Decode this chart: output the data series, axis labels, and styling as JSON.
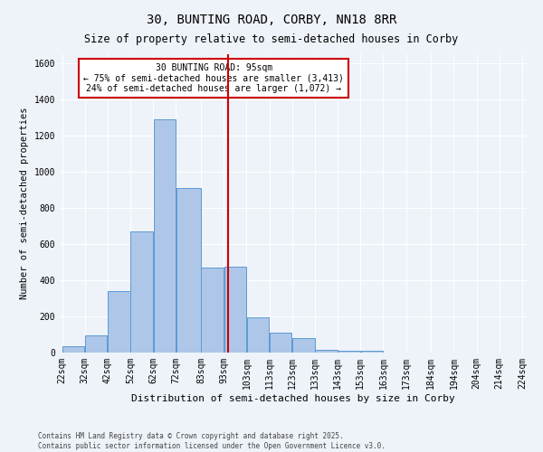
{
  "title": "30, BUNTING ROAD, CORBY, NN18 8RR",
  "subtitle": "Size of property relative to semi-detached houses in Corby",
  "xlabel": "Distribution of semi-detached houses by size in Corby",
  "ylabel": "Number of semi-detached properties",
  "footer_line1": "Contains HM Land Registry data © Crown copyright and database right 2025.",
  "footer_line2": "Contains public sector information licensed under the Open Government Licence v3.0.",
  "annotation_title": "30 BUNTING ROAD: 95sqm",
  "annotation_line1": "← 75% of semi-detached houses are smaller (3,413)",
  "annotation_line2": "24% of semi-detached houses are larger (1,072) →",
  "vline_x": 95,
  "bins": [
    22,
    32,
    42,
    52,
    62,
    72,
    83,
    93,
    103,
    113,
    123,
    133,
    143,
    153,
    163,
    173,
    184,
    194,
    204,
    214,
    224
  ],
  "bar_heights": [
    35,
    95,
    340,
    670,
    1290,
    910,
    470,
    475,
    195,
    110,
    80,
    15,
    10,
    10,
    0,
    0,
    0,
    0,
    0,
    0
  ],
  "bar_color": "#aec6e8",
  "bar_edge_color": "#5b9bd5",
  "vline_color": "#cc0000",
  "background_color": "#eef2f9",
  "grid_color": "#ffffff",
  "annotation_box_color": "#ffffff",
  "annotation_box_edge": "#cc0000",
  "ylim": [
    0,
    1650
  ],
  "yticks": [
    0,
    200,
    400,
    600,
    800,
    1000,
    1200,
    1400,
    1600
  ],
  "title_fontsize": 10,
  "subtitle_fontsize": 8.5,
  "xlabel_fontsize": 8,
  "ylabel_fontsize": 7.5,
  "tick_fontsize": 7,
  "annotation_fontsize": 7,
  "footer_fontsize": 5.5
}
